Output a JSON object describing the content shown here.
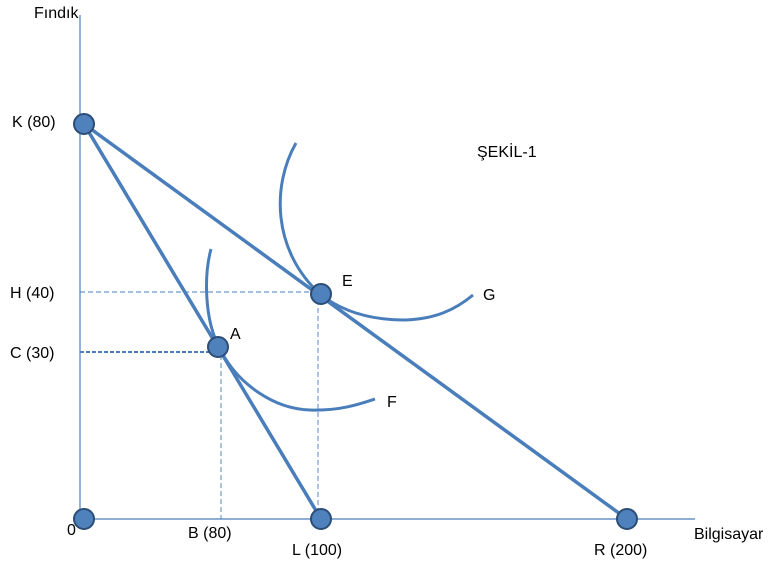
{
  "labels": {
    "y_axis": "Fındık",
    "x_axis": "Bilgisayar",
    "origin": "0",
    "figure_title": "ŞEKİL-1",
    "k": "K (80)",
    "h": "H (40)",
    "c": "C (30)",
    "b": "B (80)",
    "l": "L (100)",
    "r": "R (200)",
    "a": "A",
    "e": "E",
    "f": "F",
    "g": "G"
  },
  "colors": {
    "line": "#4a7ebb",
    "node_fill": "#4f81bd",
    "node_stroke": "#2c4d75"
  }
}
